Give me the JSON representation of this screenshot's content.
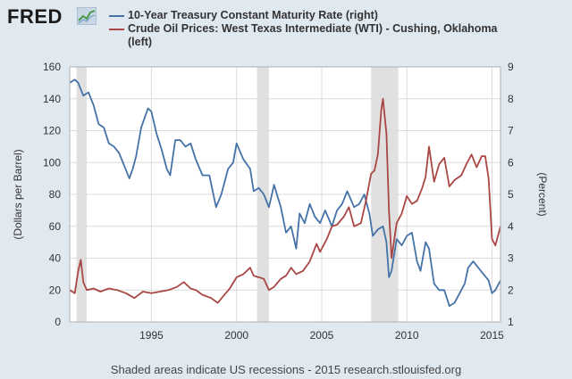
{
  "logo": {
    "text": "FRED",
    "mark": "fred-trend-logo"
  },
  "footer_text": "Shaded areas indicate US recessions - 2015 research.stlouisfed.org",
  "chart_data": {
    "type": "line",
    "grid": true,
    "x_range": [
      1990.2,
      2015.5
    ],
    "x_ticks": [
      1995,
      2000,
      2005,
      2010,
      2015
    ],
    "left_axis": {
      "label": "(Dollars per Barrel)",
      "range": [
        0,
        160
      ],
      "ticks": [
        0,
        20,
        40,
        60,
        80,
        100,
        120,
        140,
        160
      ]
    },
    "right_axis": {
      "label": "(Percent)",
      "range": [
        1,
        9
      ],
      "ticks": [
        1,
        2,
        3,
        4,
        5,
        6,
        7,
        8,
        9
      ]
    },
    "recessions": [
      [
        1990.6,
        1991.2
      ],
      [
        2001.2,
        2001.9
      ],
      [
        2007.9,
        2009.5
      ]
    ],
    "series": [
      {
        "name": "10-Year Treasury Constant Maturity Rate (right)",
        "axis": "right",
        "color": "#4572a7",
        "x": [
          1990.2,
          1990.5,
          1990.7,
          1991.0,
          1991.3,
          1991.6,
          1991.9,
          1992.2,
          1992.5,
          1992.8,
          1993.1,
          1993.4,
          1993.7,
          1993.9,
          1994.1,
          1994.4,
          1994.8,
          1995.0,
          1995.3,
          1995.6,
          1995.9,
          1996.1,
          1996.4,
          1996.7,
          1997.0,
          1997.3,
          1997.6,
          1998.0,
          1998.4,
          1998.8,
          1999.1,
          1999.5,
          1999.8,
          2000.0,
          2000.4,
          2000.8,
          2001.0,
          2001.3,
          2001.6,
          2001.9,
          2002.2,
          2002.6,
          2002.9,
          2003.2,
          2003.5,
          2003.7,
          2004.0,
          2004.3,
          2004.6,
          2004.9,
          2005.2,
          2005.6,
          2005.9,
          2006.2,
          2006.5,
          2006.9,
          2007.2,
          2007.5,
          2007.8,
          2008.0,
          2008.3,
          2008.6,
          2008.8,
          2008.95,
          2009.1,
          2009.4,
          2009.7,
          2010.0,
          2010.3,
          2010.6,
          2010.8,
          2011.1,
          2011.3,
          2011.6,
          2011.9,
          2012.2,
          2012.5,
          2012.8,
          2013.1,
          2013.4,
          2013.6,
          2013.9,
          2014.2,
          2014.5,
          2014.8,
          2015.0,
          2015.2,
          2015.5
        ],
        "values": [
          8.5,
          8.6,
          8.5,
          8.1,
          8.2,
          7.8,
          7.2,
          7.1,
          6.6,
          6.5,
          6.3,
          5.9,
          5.5,
          5.8,
          6.2,
          7.1,
          7.7,
          7.6,
          6.9,
          6.4,
          5.8,
          5.6,
          6.7,
          6.7,
          6.5,
          6.6,
          6.1,
          5.6,
          5.6,
          4.6,
          5.0,
          5.8,
          6.0,
          6.6,
          6.1,
          5.8,
          5.1,
          5.2,
          5.0,
          4.6,
          5.3,
          4.6,
          3.8,
          4.0,
          3.3,
          4.4,
          4.1,
          4.7,
          4.3,
          4.1,
          4.5,
          4.0,
          4.5,
          4.7,
          5.1,
          4.6,
          4.7,
          5.0,
          4.4,
          3.7,
          3.9,
          4.0,
          3.5,
          2.4,
          2.6,
          3.6,
          3.4,
          3.7,
          3.8,
          2.9,
          2.6,
          3.5,
          3.3,
          2.2,
          2.0,
          2.0,
          1.5,
          1.6,
          1.9,
          2.2,
          2.7,
          2.9,
          2.7,
          2.5,
          2.3,
          1.9,
          2.0,
          2.3
        ]
      },
      {
        "name": "Crude Oil Prices: West Texas Intermediate (WTI) - Cushing, Oklahoma (left)",
        "axis": "left",
        "color": "#aa4643",
        "x": [
          1990.2,
          1990.5,
          1990.7,
          1990.85,
          1991.0,
          1991.2,
          1991.6,
          1992.0,
          1992.5,
          1993.0,
          1993.5,
          1994.0,
          1994.5,
          1995.0,
          1995.5,
          1996.0,
          1996.5,
          1996.9,
          1997.3,
          1997.6,
          1998.0,
          1998.5,
          1998.9,
          1999.2,
          1999.6,
          2000.0,
          2000.4,
          2000.8,
          2001.0,
          2001.3,
          2001.6,
          2001.9,
          2002.2,
          2002.6,
          2002.9,
          2003.2,
          2003.5,
          2003.9,
          2004.3,
          2004.7,
          2004.9,
          2005.3,
          2005.6,
          2005.9,
          2006.3,
          2006.6,
          2006.9,
          2007.3,
          2007.6,
          2007.9,
          2008.1,
          2008.3,
          2008.5,
          2008.6,
          2008.8,
          2008.95,
          2009.1,
          2009.4,
          2009.7,
          2010.0,
          2010.3,
          2010.6,
          2010.9,
          2011.1,
          2011.3,
          2011.6,
          2011.9,
          2012.2,
          2012.5,
          2012.8,
          2013.2,
          2013.5,
          2013.8,
          2014.1,
          2014.4,
          2014.6,
          2014.8,
          2015.0,
          2015.2,
          2015.5
        ],
        "values": [
          20,
          18,
          32,
          39,
          25,
          20,
          21,
          19,
          21,
          20,
          18,
          15,
          19,
          18,
          19,
          20,
          22,
          25,
          21,
          20,
          17,
          15,
          12,
          16,
          21,
          28,
          30,
          34,
          29,
          28,
          27,
          20,
          22,
          27,
          29,
          34,
          30,
          32,
          38,
          49,
          44,
          52,
          60,
          61,
          66,
          72,
          60,
          62,
          76,
          93,
          95,
          105,
          133,
          140,
          118,
          70,
          40,
          62,
          68,
          79,
          74,
          76,
          84,
          91,
          110,
          88,
          99,
          103,
          85,
          89,
          92,
          99,
          105,
          97,
          104,
          104,
          90,
          52,
          48,
          60
        ]
      }
    ]
  }
}
